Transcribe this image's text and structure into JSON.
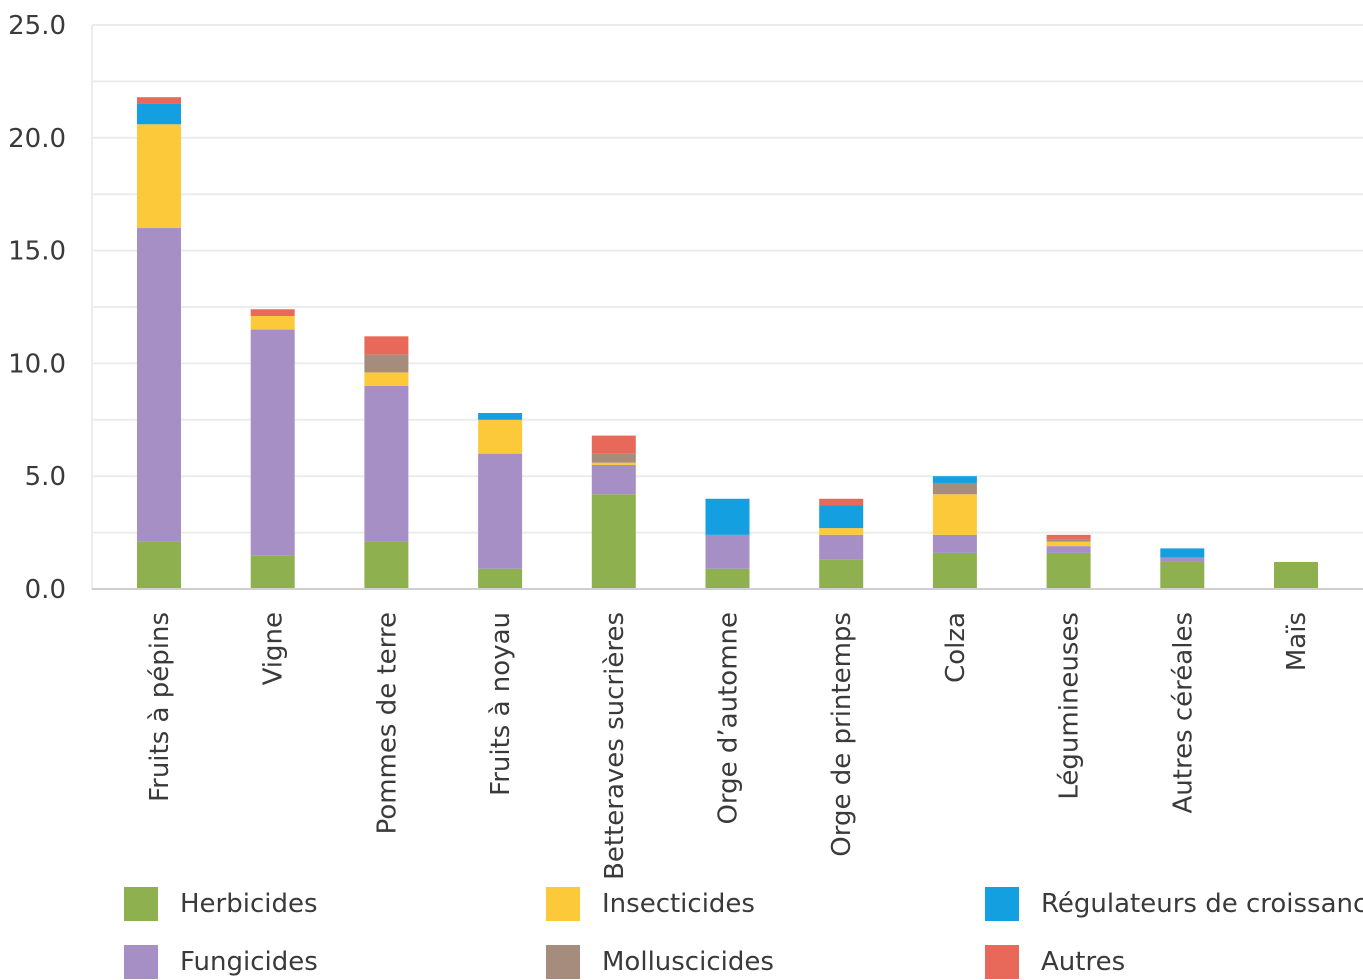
{
  "chart_data": {
    "type": "bar",
    "stacked": true,
    "categories": [
      "Fruits à pépins",
      "Vigne",
      "Pommes de terre",
      "Fruits à noyau",
      "Betteraves sucrières",
      "Orge d’automne",
      "Orge de printemps",
      "Colza",
      "Légumineuses",
      "Autres céréales",
      "Maïs"
    ],
    "series": [
      {
        "name": "Herbicides",
        "color": "#8fb04f",
        "values": [
          2.1,
          1.5,
          2.1,
          0.9,
          4.2,
          0.9,
          1.3,
          1.6,
          1.6,
          1.2,
          1.2
        ]
      },
      {
        "name": "Fungicides",
        "color": "#a58fc4",
        "values": [
          13.9,
          10.0,
          6.9,
          5.1,
          1.3,
          1.5,
          1.1,
          0.8,
          0.3,
          0.2,
          0.0
        ]
      },
      {
        "name": "Insecticides",
        "color": "#fbc93a",
        "values": [
          4.6,
          0.6,
          0.6,
          1.5,
          0.1,
          0.0,
          0.3,
          1.8,
          0.2,
          0.0,
          0.0
        ]
      },
      {
        "name": "Molluscicides",
        "color": "#a58c7d",
        "values": [
          0.0,
          0.0,
          0.8,
          0.0,
          0.4,
          0.0,
          0.0,
          0.5,
          0.1,
          0.0,
          0.0
        ]
      },
      {
        "name": "Régulateurs de croissance",
        "color": "#139fe0",
        "values": [
          0.9,
          0.0,
          0.0,
          0.3,
          0.0,
          1.6,
          1.0,
          0.3,
          0.0,
          0.4,
          0.0
        ]
      },
      {
        "name": "Autres",
        "color": "#e8685a",
        "values": [
          0.3,
          0.3,
          0.8,
          0.0,
          0.8,
          0.0,
          0.3,
          0.0,
          0.2,
          0.0,
          0.0
        ]
      }
    ],
    "yticks": [
      "0.0",
      "5.0",
      "10.0",
      "15.0",
      "20.0",
      "25.0"
    ],
    "ylim": [
      0,
      25
    ],
    "grid": true,
    "legend_position": "bottom",
    "title": "",
    "xlabel": "",
    "ylabel": ""
  }
}
